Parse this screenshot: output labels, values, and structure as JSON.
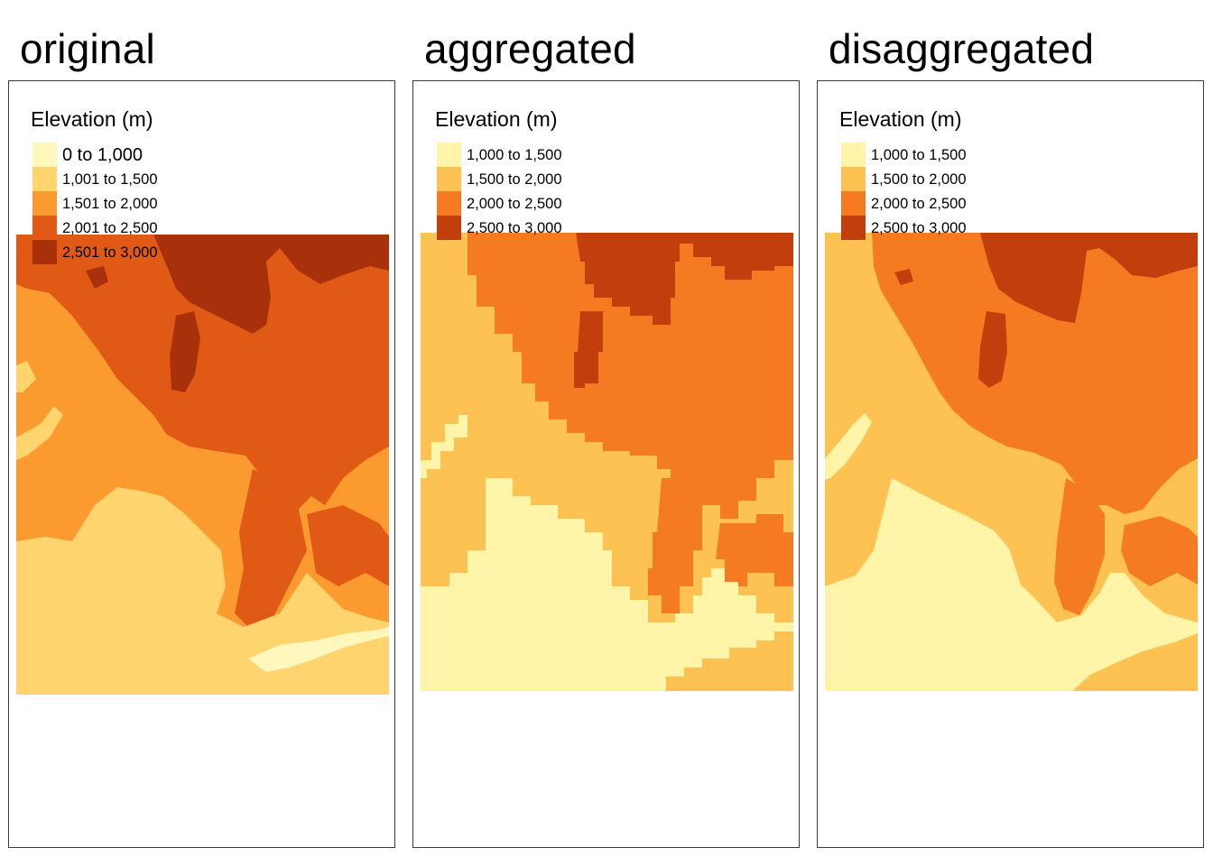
{
  "panels": [
    {
      "title": "original",
      "legend_title": "Elevation (m)",
      "classes": [
        {
          "label": "0 to 1,000",
          "color": "#FFF7BC"
        },
        {
          "label": "1,001 to 1,500",
          "color": "#FDD46D"
        },
        {
          "label": "1,501 to 2,000",
          "color": "#FB9A2E"
        },
        {
          "label": "2,001 to 2,500",
          "color": "#E05A16"
        },
        {
          "label": "2,501 to 3,000",
          "color": "#A8310C"
        }
      ]
    },
    {
      "title": "aggregated",
      "legend_title": "Elevation (m)",
      "classes": [
        {
          "label": "1,000 to 1,500",
          "color": "#FFF4A8"
        },
        {
          "label": "1,500 to 2,000",
          "color": "#FDC251"
        },
        {
          "label": "2,000 to 2,500",
          "color": "#F47B21"
        },
        {
          "label": "2,500 to 3,000",
          "color": "#C23E0C"
        }
      ]
    },
    {
      "title": "disaggregated",
      "legend_title": "Elevation (m)",
      "classes": [
        {
          "label": "1,000 to 1,500",
          "color": "#FFF4A8"
        },
        {
          "label": "1,500 to 2,000",
          "color": "#FDC251"
        },
        {
          "label": "2,000 to 2,500",
          "color": "#F47B21"
        },
        {
          "label": "2,500 to 3,000",
          "color": "#C23E0C"
        }
      ]
    }
  ]
}
